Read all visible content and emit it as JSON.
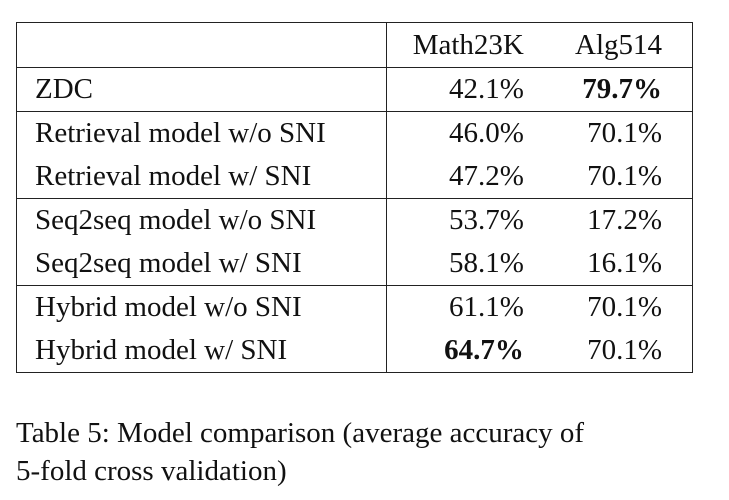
{
  "table": {
    "headers": [
      "",
      "Math23K",
      "Alg514"
    ],
    "rows": [
      {
        "model": "ZDC",
        "math23k": "42.1%",
        "alg514": "79.7%",
        "bold": "alg514",
        "group_start": true
      },
      {
        "model": "Retrieval model w/o SNI",
        "math23k": "46.0%",
        "alg514": "70.1%",
        "bold": "",
        "group_start": true
      },
      {
        "model": "Retrieval model w/ SNI",
        "math23k": "47.2%",
        "alg514": "70.1%",
        "bold": "",
        "group_start": false
      },
      {
        "model": "Seq2seq model w/o SNI",
        "math23k": "53.7%",
        "alg514": "17.2%",
        "bold": "",
        "group_start": true
      },
      {
        "model": "Seq2seq model w/ SNI",
        "math23k": "58.1%",
        "alg514": "16.1%",
        "bold": "",
        "group_start": false
      },
      {
        "model": "Hybrid model w/o SNI",
        "math23k": "61.1%",
        "alg514": "70.1%",
        "bold": "",
        "group_start": true
      },
      {
        "model": "Hybrid model w/ SNI",
        "math23k": "64.7%",
        "alg514": "70.1%",
        "bold": "math23k",
        "group_start": false
      }
    ]
  },
  "caption": {
    "line1": "Table 5:  Model comparison (average accuracy of",
    "line2": "5-fold cross validation)"
  }
}
